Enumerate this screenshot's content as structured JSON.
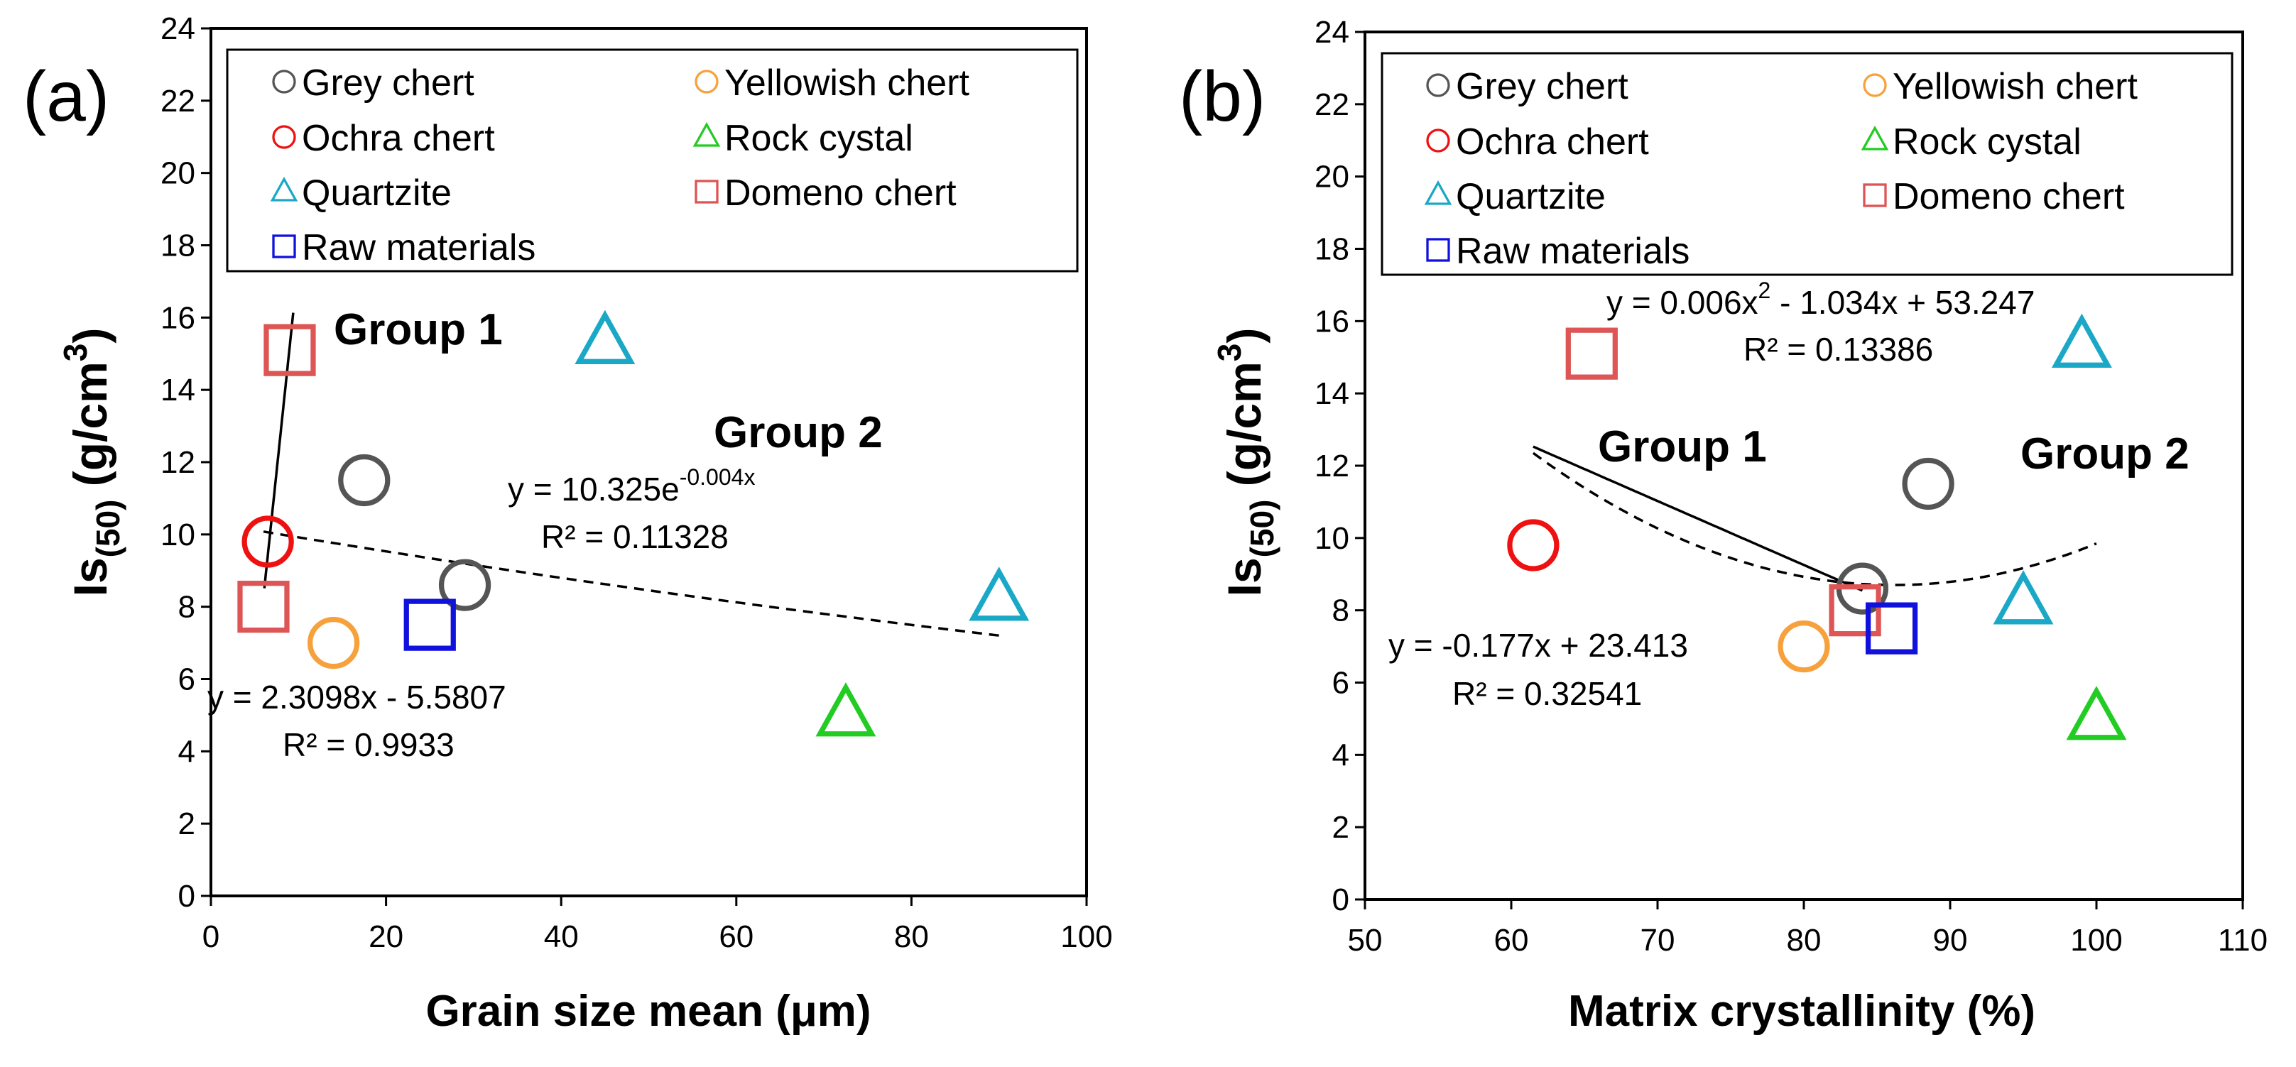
{
  "chart_data": [
    {
      "type": "scatter",
      "panel_label": "(a)",
      "xlabel": "Grain size mean (μm)",
      "ylabel": "Is(50) (g/cm3)",
      "xlim": [
        0,
        100
      ],
      "ylim": [
        0,
        24
      ],
      "xticks": [
        "0",
        "20",
        "40",
        "60",
        "80",
        "100"
      ],
      "yticks": [
        "0",
        "2",
        "4",
        "6",
        "8",
        "10",
        "12",
        "14",
        "16",
        "18",
        "20",
        "22",
        "24"
      ],
      "legend_position": "top",
      "series": [
        {
          "name": "Grey chert",
          "marker": "circle",
          "color": "#555555",
          "points": [
            [
              17.5,
              11.5
            ],
            [
              29,
              8.6
            ]
          ]
        },
        {
          "name": "Yellowish chert",
          "marker": "circle",
          "color": "#f7a13c",
          "points": [
            [
              14,
              7.0
            ]
          ]
        },
        {
          "name": "Ochra chert",
          "marker": "circle",
          "color": "#ee1111",
          "points": [
            [
              6.5,
              9.8
            ]
          ]
        },
        {
          "name": "Rock cystal",
          "marker": "triangle",
          "color": "#22cc22",
          "points": [
            [
              72.5,
              5.0
            ]
          ]
        },
        {
          "name": "Quartzite",
          "marker": "triangle",
          "color": "#1ba8c7",
          "points": [
            [
              45,
              15.3
            ],
            [
              90,
              8.2
            ]
          ]
        },
        {
          "name": "Domeno chert",
          "marker": "square",
          "color": "#dd5555",
          "points": [
            [
              9,
              15.1
            ],
            [
              6,
              8.0
            ]
          ]
        },
        {
          "name": "Raw materials",
          "marker": "square",
          "color": "#1111dd",
          "points": [
            [
              25,
              7.5
            ]
          ]
        }
      ],
      "trendlines": [
        {
          "style": "solid",
          "kind": "linear",
          "slope": 2.3098,
          "intercept": -5.5807,
          "x_range": [
            6.1,
            9.4
          ]
        },
        {
          "style": "dashed",
          "kind": "exponential",
          "a": 10.325,
          "b": -0.004,
          "x_range": [
            6,
            90
          ]
        }
      ],
      "annotations": {
        "group1": "Group 1",
        "group2": "Group 2",
        "eq_exp": "y = 10.325e",
        "eq_exp_sup": "-0.004x",
        "r2_exp": "R² = 0.11328",
        "eq_lin": "y = 2.3098x - 5.5807",
        "r2_lin": "R² = 0.9933"
      }
    },
    {
      "type": "scatter",
      "panel_label": "(b)",
      "xlabel": "Matrix crystallinity (%)",
      "ylabel": "Is(50) (g/cm3)",
      "xlim": [
        50,
        110
      ],
      "ylim": [
        0,
        24
      ],
      "xticks": [
        "50",
        "60",
        "70",
        "80",
        "90",
        "100",
        "110"
      ],
      "yticks": [
        "0",
        "2",
        "4",
        "6",
        "8",
        "10",
        "12",
        "14",
        "16",
        "18",
        "20",
        "22",
        "24"
      ],
      "legend_position": "top",
      "series": [
        {
          "name": "Grey chert",
          "marker": "circle",
          "color": "#555555",
          "points": [
            [
              88.5,
              11.5
            ],
            [
              84,
              8.6
            ]
          ]
        },
        {
          "name": "Yellowish chert",
          "marker": "circle",
          "color": "#f7a13c",
          "points": [
            [
              80,
              7.0
            ]
          ]
        },
        {
          "name": "Ochra chert",
          "marker": "circle",
          "color": "#ee1111",
          "points": [
            [
              61.5,
              9.8
            ]
          ]
        },
        {
          "name": "Rock cystal",
          "marker": "triangle",
          "color": "#22cc22",
          "points": [
            [
              100,
              5.0
            ]
          ]
        },
        {
          "name": "Quartzite",
          "marker": "triangle",
          "color": "#1ba8c7",
          "points": [
            [
              99,
              15.3
            ],
            [
              95,
              8.2
            ]
          ]
        },
        {
          "name": "Domeno chert",
          "marker": "square",
          "color": "#dd5555",
          "points": [
            [
              65.5,
              15.1
            ],
            [
              83.5,
              8.0
            ]
          ]
        },
        {
          "name": "Raw materials",
          "marker": "square",
          "color": "#1111dd",
          "points": [
            [
              86,
              7.5
            ]
          ]
        }
      ],
      "trendlines": [
        {
          "style": "solid",
          "kind": "linear",
          "slope": -0.177,
          "intercept": 23.413,
          "x_range": [
            61.5,
            84
          ]
        },
        {
          "style": "dashed",
          "kind": "quadratic",
          "a": 0.006,
          "b": -1.034,
          "c": 53.247,
          "x_range": [
            61.5,
            100
          ]
        }
      ],
      "annotations": {
        "group1": "Group 1",
        "group2": "Group 2",
        "eq_quad_a": "y = 0.006x",
        "eq_quad_sup": "2",
        "eq_quad_b": " - 1.034x + 53.247",
        "r2_quad": "R² = 0.13386",
        "eq_lin": "y = -0.177x + 23.413",
        "r2_lin": "R² = 0.32541"
      }
    }
  ]
}
